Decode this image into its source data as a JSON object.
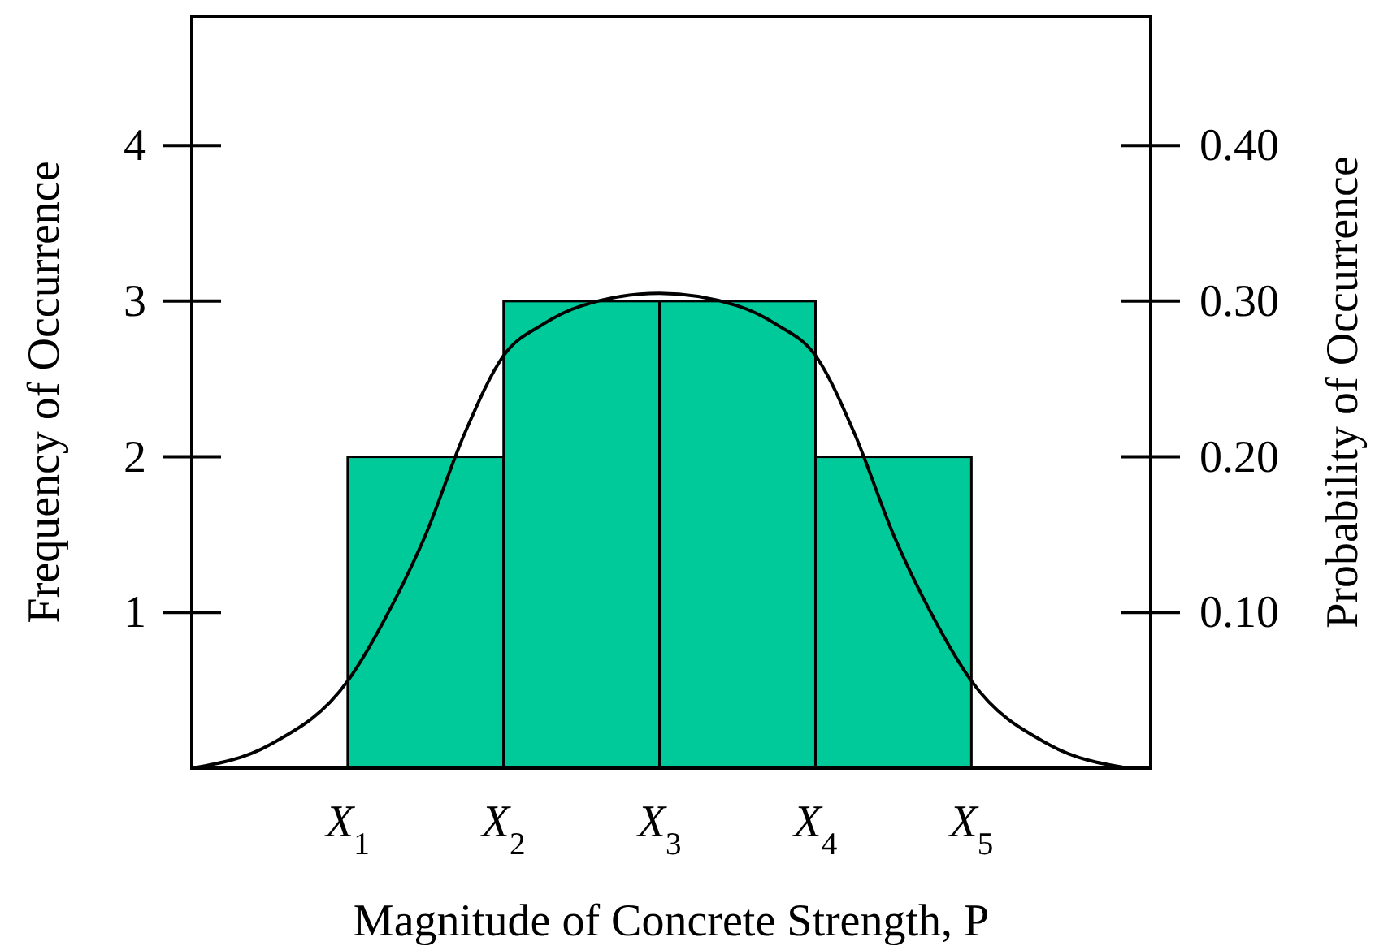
{
  "chart_data": {
    "type": "histogram",
    "xlabel": "Magnitude of Concrete Strength, P",
    "ylabel": "Frequency of Occurrence",
    "y2label": "Probability of Occurrence",
    "bins": [
      1,
      2,
      3,
      4,
      5
    ],
    "values": [
      2,
      3,
      3,
      2
    ],
    "color": "#00c99a",
    "series": [
      {
        "type": "line",
        "color": "#000000",
        "x": [
          0,
          0.5,
          1,
          1.25,
          1.5,
          1.75,
          2,
          2.25,
          2.5,
          3,
          3.5,
          3.75,
          4,
          4.25,
          4.5,
          4.75,
          5,
          5.5,
          6
        ],
        "values": [
          0,
          0.15,
          0.56,
          0.98,
          1.5,
          2.15,
          2.65,
          2.85,
          2.97,
          3.05,
          2.97,
          2.85,
          2.65,
          2.15,
          1.5,
          0.98,
          0.56,
          0.15,
          0
        ]
      }
    ],
    "xlim": [
      0,
      6.15
    ],
    "xticks": [
      {
        "value": 1,
        "label": "X$_{1}$"
      },
      {
        "value": 2,
        "label": "X$_{2}$"
      },
      {
        "value": 3,
        "label": "X$_{3}$"
      },
      {
        "value": 4,
        "label": "X$_{4}$"
      },
      {
        "value": 5,
        "label": "X$_{5}$"
      }
    ],
    "ylim": [
      0,
      4.83
    ],
    "yticks": [
      1,
      2,
      3,
      4
    ],
    "y2lim": [
      0,
      0.483
    ],
    "y2ticks": [
      {
        "value": 0.1,
        "label": "0.10"
      },
      {
        "value": 0.2,
        "label": "0.20"
      },
      {
        "value": 0.3,
        "label": "0.30"
      },
      {
        "value": 0.4,
        "label": "0.40"
      }
    ]
  }
}
